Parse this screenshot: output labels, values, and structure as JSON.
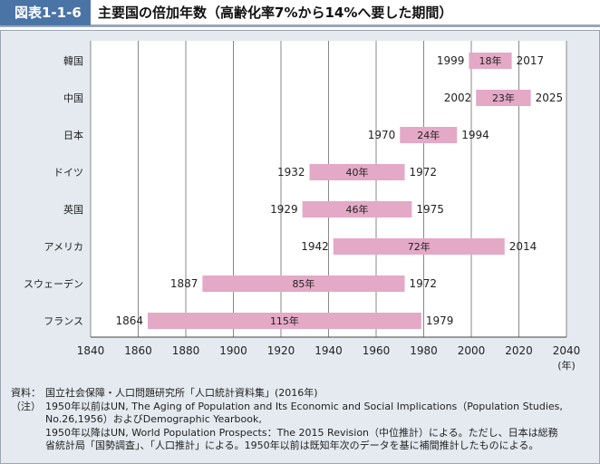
{
  "header": {
    "tag": "図表1-1-6",
    "title": "主要国の倍加年数（高齢化率7%から14%へ要した期間）"
  },
  "chart_data": {
    "type": "bar",
    "subtype": "floating-range",
    "title": "主要国の倍加年数（高齢化率7%から14%へ要した期間）",
    "xlabel": "(年)",
    "xlim": [
      1840,
      2040
    ],
    "xticks": [
      1840,
      1860,
      1880,
      1900,
      1920,
      1940,
      1960,
      1980,
      2000,
      2020,
      2040
    ],
    "grid": true,
    "categories": [
      "韓国",
      "中国",
      "日本",
      "ドイツ",
      "英国",
      "アメリカ",
      "スウェーデン",
      "フランス"
    ],
    "series": [
      {
        "name": "倍加年数",
        "start": [
          1999,
          2002,
          1970,
          1932,
          1929,
          1942,
          1887,
          1864
        ],
        "end": [
          2017,
          2025,
          1994,
          1972,
          1975,
          2014,
          1972,
          1979
        ],
        "labels": [
          "18年",
          "23年",
          "24年",
          "40年",
          "46年",
          "72年",
          "85年",
          "115年"
        ]
      }
    ],
    "bar_color": "#e4a9c7"
  },
  "notes": {
    "source_label": "資料：",
    "source": "国立社会保障・人口問題研究所「人口統計資料集」(2016年)",
    "note_label": "（注）",
    "lines": [
      "1950年以前はUN, The Aging of Population and Its Economic and Social Implications（Population Studies,",
      "No.26,1956）およびDemographic Yearbook,",
      "1950年以降はUN, World Population Prospects：The 2015 Revision（中位推計）による。ただし、日本は総務",
      "省統計局「国勢調査」、「人口推計」による。1950年以前は既知年次のデータを基に補間推計したものによる。"
    ]
  }
}
